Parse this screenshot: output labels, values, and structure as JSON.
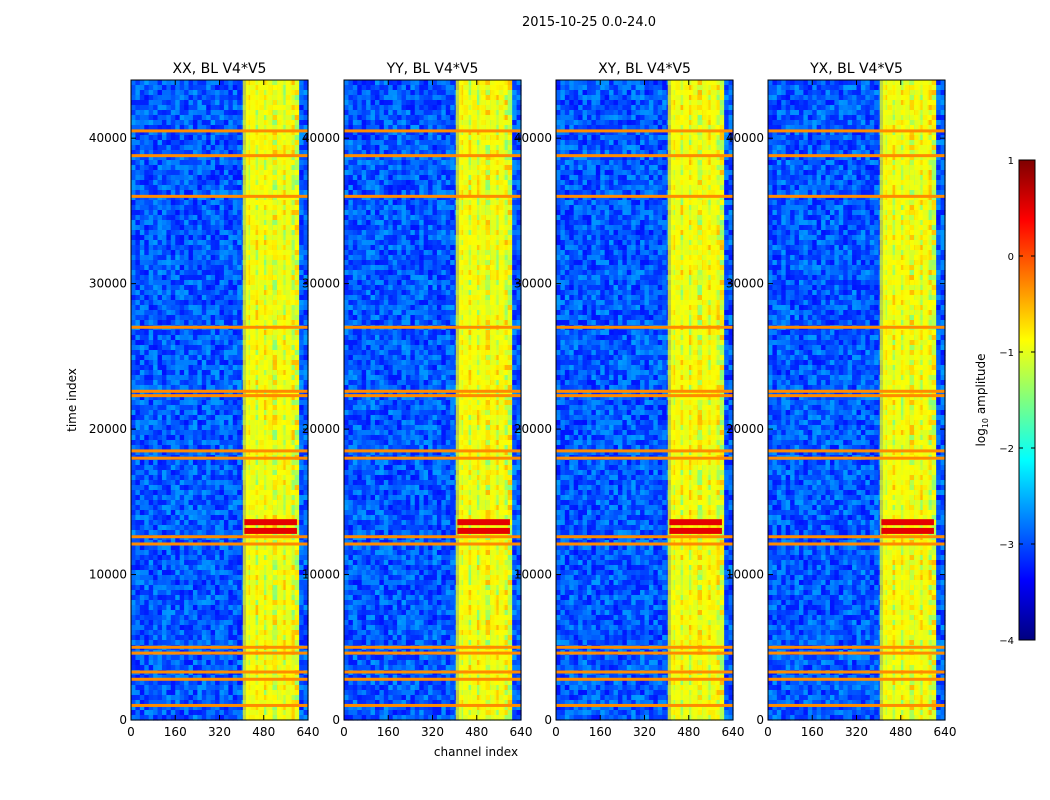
{
  "figure": {
    "suptitle": "2015-10-25 0.0-24.0"
  },
  "chart_data": {
    "type": "heatmap",
    "shared_xlabel": "channel index",
    "shared_ylabel": "time index",
    "xlim": [
      0,
      640
    ],
    "ylim": [
      0,
      44000
    ],
    "xticks": [
      "0",
      "160",
      "320",
      "480",
      "640"
    ],
    "xtick_values": [
      0,
      160,
      320,
      480,
      640
    ],
    "yticks": [
      "0",
      "10000",
      "20000",
      "30000",
      "40000"
    ],
    "ytick_values": [
      0,
      10000,
      20000,
      30000,
      40000
    ],
    "colormap": "jet",
    "panels": [
      {
        "title": "XX, BL V4*V5",
        "signal_band": [
          410,
          600
        ]
      },
      {
        "title": "YY, BL V4*V5",
        "signal_band": [
          410,
          600
        ]
      },
      {
        "title": "XY, BL V4*V5",
        "signal_band": [
          410,
          600
        ]
      },
      {
        "title": "YX, BL V4*V5",
        "signal_band": [
          410,
          600
        ]
      }
    ],
    "bright_columns": [
      415,
      440,
      470,
      500,
      540,
      570
    ],
    "rfi_rows": [
      1000,
      2800,
      3300,
      4600,
      5000,
      12100,
      12600,
      18000,
      18500,
      22300,
      22600,
      27000,
      36000,
      38800,
      40500
    ],
    "strong_bursts": [
      13000,
      13600
    ],
    "colorbar": {
      "label": "log$_{10}$ amplitude",
      "label_main": "log",
      "label_sub": "10",
      "label_rest": " amplitude",
      "range": [
        -4,
        1
      ],
      "ticks": [
        "1",
        "0",
        "−1",
        "−2",
        "−3",
        "−4"
      ],
      "tick_values": [
        1,
        0,
        -1,
        -2,
        -3,
        -4
      ]
    }
  }
}
